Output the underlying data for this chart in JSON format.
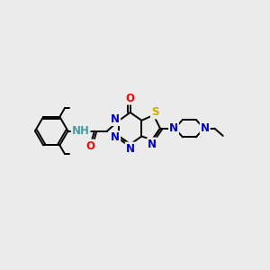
{
  "bg_color": "#ebebeb",
  "atom_colors": {
    "C": "#000000",
    "N": "#0000cc",
    "O": "#ff0000",
    "S": "#ccaa00",
    "H": "#4a9a9a"
  },
  "bond_color": "#000000",
  "bond_width": 1.4,
  "font_size_atom": 8.5,
  "fig_bg": "#ebebeb"
}
